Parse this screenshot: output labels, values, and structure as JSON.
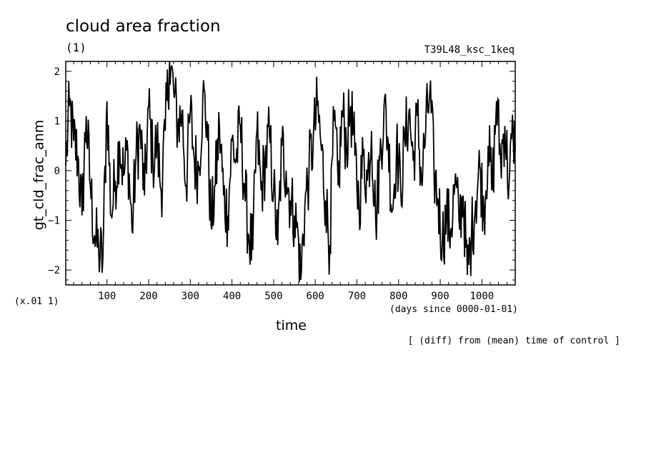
{
  "chart_data": {
    "type": "line",
    "title": "cloud area fraction",
    "units_label": "(1)",
    "run_label": "T39L48_ksc_1keq",
    "ylabel": "gt_cld_frac_anm",
    "xlabel": "time",
    "x_units": "(days since 0000-01-01)",
    "y_scale_note": "(x.01 1)",
    "footnote": "[ (diff) from (mean) time of control ]",
    "xlim": [
      1,
      1080
    ],
    "ylim": [
      -2.3,
      2.2
    ],
    "x_ticks": [
      100,
      200,
      300,
      400,
      500,
      600,
      700,
      800,
      900,
      1000
    ],
    "y_ticks": [
      -2,
      -1,
      0,
      1,
      2
    ],
    "series": [
      {
        "color": "#000000",
        "anchors": [
          [
            1,
            0.1
          ],
          [
            10,
            1.3
          ],
          [
            20,
            0.6
          ],
          [
            30,
            0.3
          ],
          [
            40,
            -0.9
          ],
          [
            50,
            1.1
          ],
          [
            60,
            -0.3
          ],
          [
            70,
            -1.3
          ],
          [
            80,
            -1.6
          ],
          [
            90,
            -1.8
          ],
          [
            100,
            1.4
          ],
          [
            110,
            -0.9
          ],
          [
            120,
            -0.2
          ],
          [
            130,
            0.6
          ],
          [
            140,
            -0.1
          ],
          [
            150,
            0.4
          ],
          [
            160,
            -1.2
          ],
          [
            170,
            0.3
          ],
          [
            180,
            0.8
          ],
          [
            190,
            -0.5
          ],
          [
            200,
            1.3
          ],
          [
            210,
            0.2
          ],
          [
            220,
            0.6
          ],
          [
            230,
            -0.4
          ],
          [
            240,
            0.8
          ],
          [
            250,
            2.2
          ],
          [
            260,
            1.6
          ],
          [
            270,
            0.9
          ],
          [
            280,
            1.2
          ],
          [
            290,
            -0.3
          ],
          [
            300,
            1.2
          ],
          [
            310,
            0.2
          ],
          [
            320,
            0.0
          ],
          [
            330,
            1.5
          ],
          [
            340,
            1.0
          ],
          [
            350,
            -1.1
          ],
          [
            360,
            -0.3
          ],
          [
            370,
            0.9
          ],
          [
            380,
            -0.5
          ],
          [
            390,
            -0.9
          ],
          [
            400,
            0.6
          ],
          [
            410,
            0.2
          ],
          [
            420,
            0.9
          ],
          [
            430,
            -0.3
          ],
          [
            440,
            -1.3
          ],
          [
            450,
            -1.6
          ],
          [
            460,
            0.8
          ],
          [
            470,
            -0.4
          ],
          [
            480,
            0.2
          ],
          [
            490,
            0.7
          ],
          [
            500,
            -0.4
          ],
          [
            510,
            -1.5
          ],
          [
            520,
            0.5
          ],
          [
            530,
            0.0
          ],
          [
            540,
            -0.6
          ],
          [
            550,
            -0.9
          ],
          [
            560,
            -1.4
          ],
          [
            565,
            -2.2
          ],
          [
            575,
            -0.7
          ],
          [
            585,
            0.0
          ],
          [
            595,
            0.6
          ],
          [
            605,
            1.3
          ],
          [
            615,
            0.4
          ],
          [
            625,
            -0.6
          ],
          [
            635,
            -1.5
          ],
          [
            645,
            1.0
          ],
          [
            655,
            -0.3
          ],
          [
            665,
            1.2
          ],
          [
            675,
            0.5
          ],
          [
            685,
            1.3
          ],
          [
            695,
            0.3
          ],
          [
            705,
            -0.7
          ],
          [
            715,
            0.3
          ],
          [
            725,
            -0.2
          ],
          [
            735,
            0.8
          ],
          [
            745,
            -1.0
          ],
          [
            755,
            0.2
          ],
          [
            765,
            1.3
          ],
          [
            775,
            0.6
          ],
          [
            785,
            -0.8
          ],
          [
            795,
            0.5
          ],
          [
            805,
            -0.4
          ],
          [
            815,
            0.6
          ],
          [
            825,
            1.2
          ],
          [
            835,
            0.2
          ],
          [
            845,
            1.1
          ],
          [
            855,
            -0.2
          ],
          [
            865,
            0.8
          ],
          [
            875,
            1.6
          ],
          [
            885,
            0.0
          ],
          [
            895,
            -0.6
          ],
          [
            905,
            -1.4
          ],
          [
            915,
            -0.9
          ],
          [
            925,
            -1.2
          ],
          [
            935,
            -0.3
          ],
          [
            945,
            -1.0
          ],
          [
            955,
            -0.5
          ],
          [
            965,
            -2.1
          ],
          [
            975,
            -1.3
          ],
          [
            985,
            -0.6
          ],
          [
            995,
            0.1
          ],
          [
            1005,
            -0.8
          ],
          [
            1015,
            0.5
          ],
          [
            1025,
            -0.4
          ],
          [
            1035,
            1.4
          ],
          [
            1045,
            0.2
          ],
          [
            1055,
            0.9
          ],
          [
            1065,
            -0.3
          ],
          [
            1075,
            0.8
          ],
          [
            1080,
            0.4
          ]
        ]
      }
    ]
  }
}
